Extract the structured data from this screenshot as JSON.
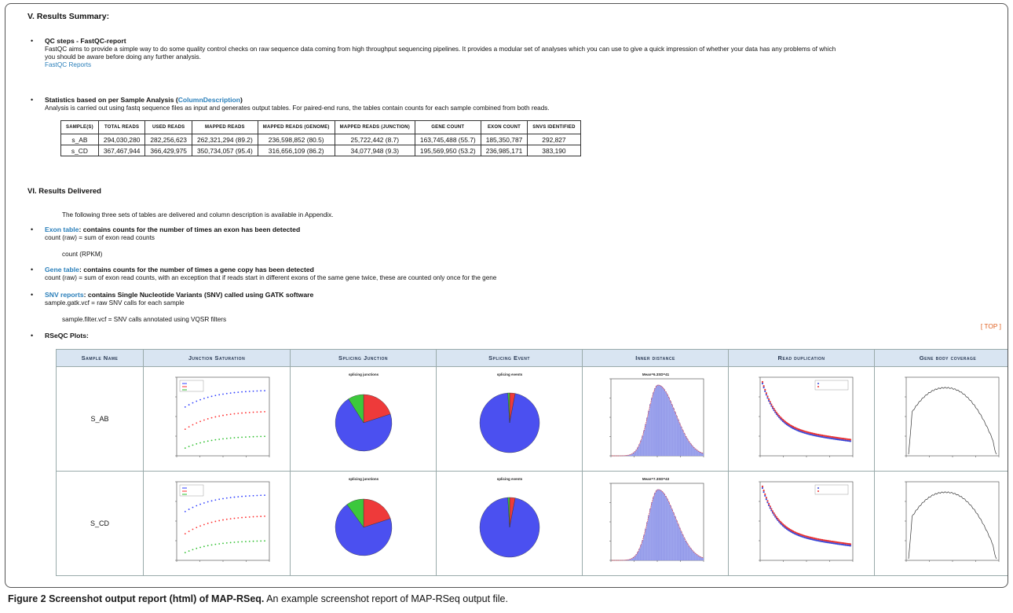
{
  "sections": {
    "summary_title": "V. Results Summary:",
    "delivered_title": "VI. Results Delivered"
  },
  "qc": {
    "title": "QC steps - FastQC-report",
    "text1": "FastQC aims to provide a simple way to do some quality control checks on raw sequence data coming from high throughput sequencing pipelines. It provides a modular set of analyses which you can use to give a quick impression of whether your data has any problems of which",
    "text2": "you should be aware before doing any further analysis.",
    "link": "FastQC Reports"
  },
  "stats": {
    "title": "Statistics based on per Sample Analysis (",
    "link": "ColumnDescription",
    "title_end": ")",
    "text": "Analysis is carried out using fastq sequence files as input and generates output tables. For paired-end runs, the tables contain counts for each sample combined from both reads.",
    "headers": [
      "Sample(s)",
      "Total Reads",
      "Used Reads",
      "Mapped Reads",
      "Mapped Reads (Genome)",
      "Mapped Reads (Junction)",
      "Gene Count",
      "Exon Count",
      "SNVs Identified"
    ],
    "rows": [
      [
        "s_AB",
        "294,030,280",
        "282,256,623",
        "262,321,294 (89.2)",
        "236,598,852 (80.5)",
        "25,722,442 (8.7)",
        "163,745,488 (55.7)",
        "185,350,787",
        "292,827"
      ],
      [
        "s_CD",
        "367,467,944",
        "366,429,975",
        "350,734,057 (95.4)",
        "316,656,109 (86.2)",
        "34,077,948 (9.3)",
        "195,569,950 (53.2)",
        "236,985,171",
        "383,190"
      ]
    ]
  },
  "delivered": {
    "intro": "The following three sets of tables are delivered and column description is available in Appendix.",
    "exon_link": "Exon table",
    "exon_title": ": contains counts for the number of times an exon has been detected",
    "exon_l1": "count (raw) = sum of exon read counts",
    "exon_l2": "count (RPKM)",
    "gene_link": "Gene table",
    "gene_title": ": contains counts for the number of times a gene copy has been detected",
    "gene_l1": "count (raw) = sum of exon read counts, with an exception that if reads start in different exons of the same gene twice, these are counted only once for the gene",
    "snv_link": "SNV reports",
    "snv_title": ": contains Single Nucleotide Variants (SNV) called using GATK software",
    "snv_l1": "sample.gatk.vcf = raw SNV calls for each sample",
    "snv_l2": "sample.filter.vcf = SNV calls annotated using VQSR filters",
    "rseqc_title": "RSeQC Plots:",
    "top_link": "[ TOP ]"
  },
  "plots": {
    "headers": [
      "Sample Name",
      "Junction Saturation",
      "Splicing Junction",
      "Splicing Event",
      "Inner distance",
      "Read duplication",
      "Gene body coverage"
    ],
    "samples": [
      "S_AB",
      "S_CD"
    ],
    "sj_title": "splicing junctions",
    "se_title": "splicing events",
    "id_title_ab": "Mean=6.3SD=41",
    "id_title_cd": "Mean=7.3SD=43",
    "junction_colors": [
      "#3040ff",
      "#ff3030",
      "#30c030"
    ],
    "pie_colors": {
      "blue": "#4b50f0",
      "red": "#ee3a3a",
      "green": "#3cc83c"
    }
  },
  "caption": {
    "bold": "Figure 2 Screenshot output report (html) of MAP-RSeq.",
    "text": " An example screenshot report of MAP-RSeq output file."
  }
}
